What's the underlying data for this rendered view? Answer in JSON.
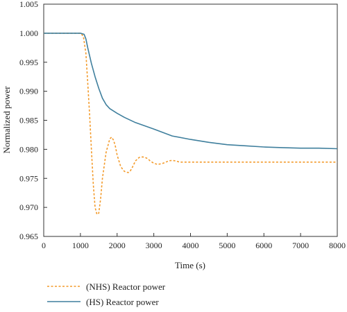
{
  "chart_data": {
    "type": "line",
    "title": "",
    "xlabel": "Time (s)",
    "ylabel": "Normalized power",
    "xlim": [
      0,
      8000
    ],
    "ylim": [
      0.965,
      1.005
    ],
    "xticks": [
      0,
      1000,
      2000,
      3000,
      4000,
      5000,
      6000,
      7000,
      8000
    ],
    "xtick_labels": [
      "0",
      "1000",
      "2000",
      "3000",
      "4000",
      "5000",
      "6000",
      "7000",
      "8000"
    ],
    "yticks": [
      0.965,
      0.97,
      0.975,
      0.98,
      0.985,
      0.99,
      0.995,
      1.0,
      1.005
    ],
    "ytick_labels": [
      "0.965",
      "0.970",
      "0.975",
      "0.980",
      "0.985",
      "0.990",
      "0.995",
      "1.000",
      "1.005"
    ],
    "grid": false,
    "legend_position": "below-left",
    "series": [
      {
        "name": "(NHS) Reactor power",
        "color": "#f39a2a",
        "style": "dotted",
        "x": [
          0,
          1000,
          1080,
          1150,
          1200,
          1250,
          1300,
          1350,
          1400,
          1450,
          1500,
          1550,
          1600,
          1700,
          1800,
          1850,
          1900,
          1950,
          2000,
          2100,
          2200,
          2300,
          2350,
          2400,
          2500,
          2600,
          2700,
          2800,
          2850,
          2900,
          3000,
          3100,
          3200,
          3300,
          3400,
          3500,
          3600,
          3700,
          4000,
          5000,
          6000,
          7000,
          8000
        ],
        "y": [
          1.0,
          1.0,
          0.9995,
          0.9965,
          0.9915,
          0.986,
          0.98,
          0.974,
          0.97,
          0.9688,
          0.969,
          0.9715,
          0.975,
          0.9795,
          0.9818,
          0.9821,
          0.9816,
          0.9806,
          0.979,
          0.977,
          0.9762,
          0.976,
          0.9762,
          0.9767,
          0.978,
          0.9786,
          0.9787,
          0.9785,
          0.9783,
          0.978,
          0.9776,
          0.9774,
          0.9775,
          0.9777,
          0.978,
          0.9781,
          0.978,
          0.9778,
          0.9778,
          0.9778,
          0.9778,
          0.9778,
          0.9778
        ]
      },
      {
        "name": "(HS) Reactor power",
        "color": "#3f7f9d",
        "style": "solid",
        "x": [
          0,
          1000,
          1100,
          1150,
          1200,
          1300,
          1400,
          1500,
          1600,
          1700,
          1800,
          2000,
          2200,
          2500,
          3000,
          3500,
          4000,
          4500,
          5000,
          5500,
          6000,
          6500,
          7000,
          7500,
          8000
        ],
        "y": [
          1.0,
          1.0,
          0.9998,
          0.999,
          0.9975,
          0.9948,
          0.9925,
          0.9905,
          0.9888,
          0.9877,
          0.987,
          0.9862,
          0.9855,
          0.9846,
          0.9835,
          0.9823,
          0.9817,
          0.9812,
          0.9808,
          0.9806,
          0.9804,
          0.9803,
          0.9802,
          0.9802,
          0.9801
        ]
      }
    ]
  }
}
